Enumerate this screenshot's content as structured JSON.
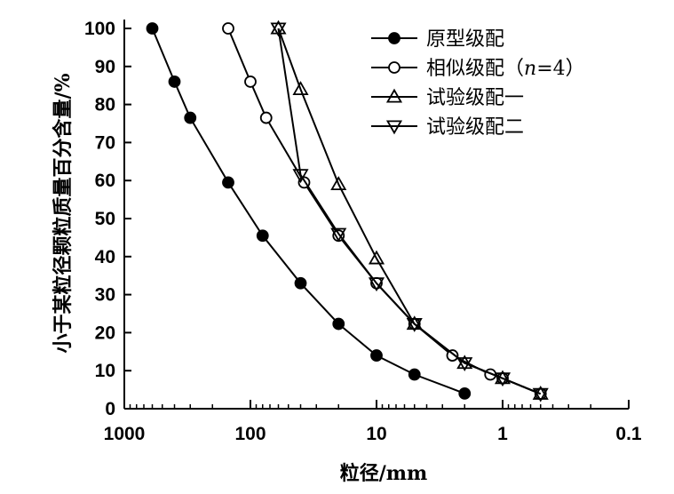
{
  "chart_data": {
    "type": "line",
    "xscale": "log",
    "xlim": [
      1000,
      0.1
    ],
    "ylim": [
      0,
      100
    ],
    "xticks": [
      "1000",
      "100",
      "10",
      "1",
      "0.1"
    ],
    "yticks": [
      "0",
      "10",
      "20",
      "30",
      "40",
      "50",
      "60",
      "70",
      "80",
      "90",
      "100"
    ],
    "xlabel": "粒径/mm",
    "ylabel": "小于某粒径颗粒质量百分含量/%",
    "grid": false,
    "legend_position": "top-right",
    "series": [
      {
        "name": "原型级配",
        "marker": "filled-circle",
        "points": [
          [
            600,
            100
          ],
          [
            400,
            86
          ],
          [
            300,
            76.5
          ],
          [
            150,
            59.5
          ],
          [
            80,
            45.5
          ],
          [
            40,
            33
          ],
          [
            20,
            22.3
          ],
          [
            10,
            14
          ],
          [
            5,
            9
          ],
          [
            2,
            4
          ]
        ]
      },
      {
        "name": "相似级配（n=4）",
        "name_parts": [
          "相似级配（",
          "n",
          "=4）"
        ],
        "marker": "open-circle",
        "points": [
          [
            150,
            100
          ],
          [
            100,
            86
          ],
          [
            75,
            76.5
          ],
          [
            37.5,
            59.5
          ],
          [
            20,
            45.5
          ],
          [
            10,
            33
          ],
          [
            5,
            22.3
          ],
          [
            2.5,
            14
          ],
          [
            1.25,
            9
          ],
          [
            1,
            8
          ],
          [
            0.5,
            3.9
          ]
        ]
      },
      {
        "name": "试验级配一",
        "marker": "triangle-up",
        "points": [
          [
            60,
            100
          ],
          [
            40,
            84
          ],
          [
            20,
            59
          ],
          [
            10,
            39.5
          ],
          [
            5,
            22.3
          ],
          [
            2,
            12
          ],
          [
            1,
            8
          ],
          [
            0.5,
            3.9
          ]
        ]
      },
      {
        "name": "试验级配二",
        "marker": "triangle-down",
        "points": [
          [
            60,
            100
          ],
          [
            40,
            61.5
          ],
          [
            20,
            46
          ],
          [
            10,
            33
          ],
          [
            5,
            22.3
          ],
          [
            2,
            12
          ],
          [
            1,
            8
          ],
          [
            0.5,
            3.9
          ]
        ]
      }
    ]
  }
}
